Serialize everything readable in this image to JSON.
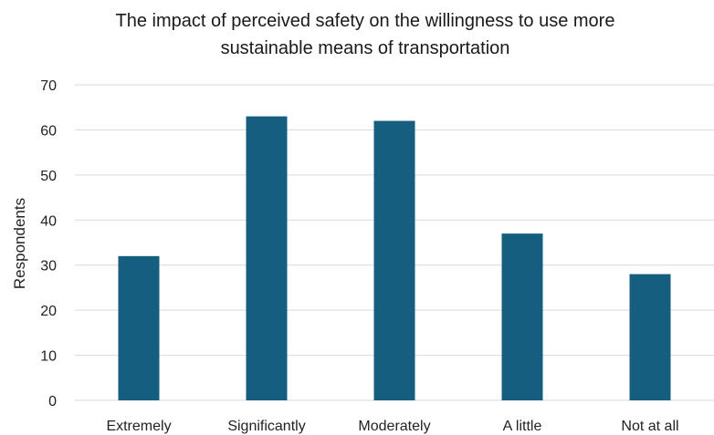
{
  "chart_data": {
    "type": "bar",
    "title": "The impact of perceived safety on the willingness to use more sustainable means of transportation",
    "title_lines": [
      "The impact of perceived safety on the willingness to use more",
      "sustainable means of transportation"
    ],
    "xlabel": "",
    "ylabel": "Respondents",
    "categories": [
      "Extremely",
      "Significantly",
      "Moderately",
      "A little",
      "Not at all"
    ],
    "values": [
      32,
      63,
      62,
      37,
      28
    ],
    "ylim": [
      0,
      70
    ],
    "yticks": [
      0,
      10,
      20,
      30,
      40,
      50,
      60,
      70
    ],
    "grid": true,
    "legend": "none",
    "bar_color": "#165e80",
    "grid_color": "#d9d9d9"
  }
}
